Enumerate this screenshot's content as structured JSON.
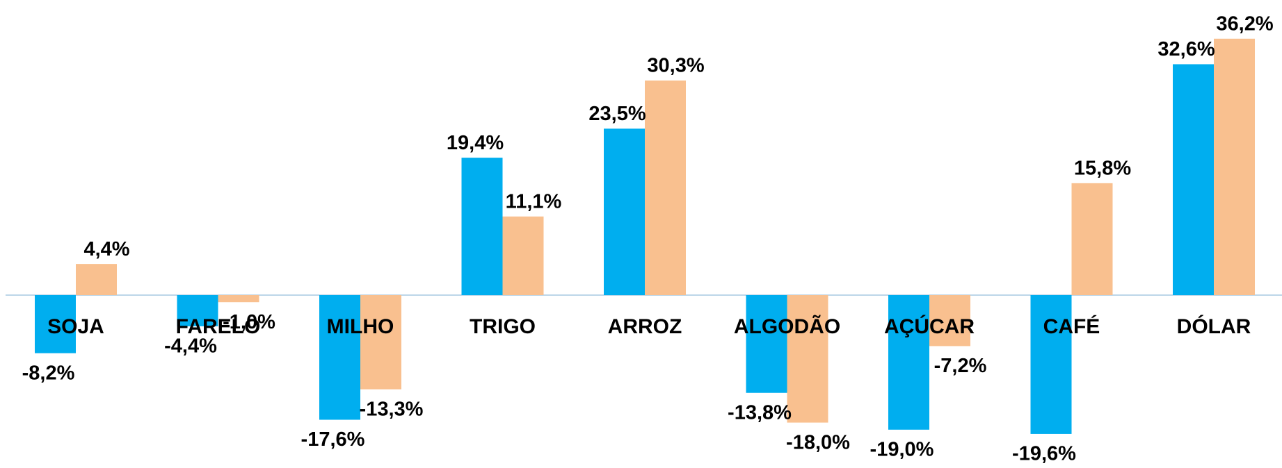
{
  "chart_data": {
    "type": "bar",
    "categories": [
      "SOJA",
      "FARELO",
      "MILHO",
      "TRIGO",
      "ARROZ",
      "ALGODÃO",
      "AÇÚCAR",
      "CAFÉ",
      "DÓLAR"
    ],
    "series": [
      {
        "color": "#00aeef",
        "values": [
          -8.2,
          -4.4,
          -17.6,
          19.4,
          23.5,
          -13.8,
          -19.0,
          -19.6,
          32.6
        ],
        "value_labels": [
          "-8,2%",
          "-4,4%",
          "-17,6%",
          "19,4%",
          "23,5%",
          "-13,8%",
          "-19,0%",
          "-19,6%",
          "32,6%"
        ]
      },
      {
        "color": "#f9c08f",
        "values": [
          4.4,
          -1.0,
          -13.3,
          11.1,
          30.3,
          -18.0,
          -7.2,
          15.8,
          36.2
        ],
        "value_labels": [
          "4,4%",
          "-1,0%",
          "-13,3%",
          "11,1%",
          "30,3%",
          "-18,0%",
          "-7,2%",
          "15,8%",
          "36,2%"
        ]
      }
    ]
  }
}
